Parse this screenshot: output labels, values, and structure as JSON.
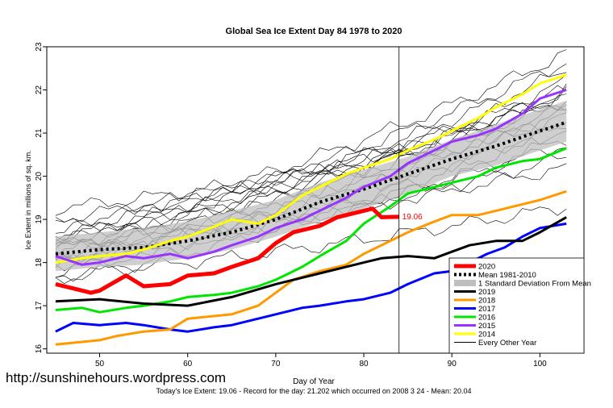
{
  "watermark": "http://sunshinehours.wordpress.com",
  "chart_data": {
    "type": "line",
    "title": "Global Sea Ice Extent Day 84 1978 to 2020",
    "xlabel": "Day of Year",
    "ylabel": "Ice Extent in millions of sq. km.",
    "footer": "Today's Ice Extent: 19.06  - Record for the day: 21.202 which occurred on 2008 3 24  - Mean: 20.04",
    "xlim": [
      44,
      105
    ],
    "ylim": [
      15.9,
      23.0
    ],
    "xticks": [
      50,
      60,
      70,
      80,
      90,
      100
    ],
    "yticks": [
      16,
      17,
      18,
      19,
      20,
      21,
      22,
      23
    ],
    "current_day": 84,
    "current_value_label": "19.06",
    "legend": [
      {
        "label": "2020",
        "color": "#ff0000",
        "style": "line",
        "width": 5
      },
      {
        "label": "Mean 1981-2010",
        "color": "#000000",
        "style": "dotted",
        "width": 4
      },
      {
        "label": "1 Standard Deviation From Mean",
        "color": "#bfbfbf",
        "style": "band",
        "width": 8
      },
      {
        "label": "2019",
        "color": "#000000",
        "style": "line",
        "width": 3
      },
      {
        "label": "2018",
        "color": "#ff9900",
        "style": "line",
        "width": 3
      },
      {
        "label": "2017",
        "color": "#0000ff",
        "style": "line",
        "width": 3
      },
      {
        "label": "2016",
        "color": "#00e600",
        "style": "line",
        "width": 3
      },
      {
        "label": "2015",
        "color": "#9933ff",
        "style": "line",
        "width": 3
      },
      {
        "label": "2014",
        "color": "#ffff00",
        "style": "line",
        "width": 3
      },
      {
        "label": "Every Other Year",
        "color": "#000000",
        "style": "line",
        "width": 1
      }
    ],
    "mean_series": {
      "x": [
        45,
        50,
        55,
        60,
        65,
        70,
        75,
        80,
        85,
        90,
        95,
        100,
        103
      ],
      "values": [
        18.2,
        18.3,
        18.35,
        18.5,
        18.7,
        19.0,
        19.4,
        19.7,
        20.05,
        20.4,
        20.7,
        21.05,
        21.25
      ]
    },
    "std_band": {
      "x": [
        45,
        50,
        55,
        60,
        65,
        70,
        75,
        80,
        85,
        90,
        95,
        100,
        103
      ],
      "upper": [
        18.6,
        18.7,
        18.8,
        18.95,
        19.2,
        19.45,
        19.85,
        20.15,
        20.45,
        20.85,
        21.2,
        21.55,
        21.75
      ],
      "lower": [
        17.8,
        17.9,
        17.95,
        18.1,
        18.3,
        18.6,
        18.95,
        19.25,
        19.6,
        20.0,
        20.25,
        20.6,
        20.8
      ]
    },
    "series": [
      {
        "name": "2020",
        "color": "#ff0000",
        "width": 5,
        "x": [
          45,
          47,
          49,
          50,
          53,
          55,
          58,
          60,
          63,
          65,
          68,
          70,
          72,
          75,
          77,
          80,
          81,
          82,
          84
        ],
        "values": [
          17.5,
          17.4,
          17.3,
          17.35,
          17.7,
          17.45,
          17.5,
          17.7,
          17.75,
          17.9,
          18.1,
          18.45,
          18.7,
          18.85,
          19.05,
          19.2,
          19.25,
          19.05,
          19.06
        ]
      },
      {
        "name": "2019",
        "color": "#000000",
        "width": 3,
        "x": [
          45,
          50,
          55,
          60,
          65,
          70,
          75,
          80,
          82,
          85,
          88,
          90,
          92,
          95,
          98,
          100,
          103
        ],
        "values": [
          17.1,
          17.15,
          17.05,
          17.0,
          17.2,
          17.5,
          17.75,
          18.0,
          18.1,
          18.15,
          18.1,
          18.25,
          18.4,
          18.5,
          18.5,
          18.7,
          19.05
        ]
      },
      {
        "name": "2018",
        "color": "#ff9900",
        "width": 3,
        "x": [
          45,
          50,
          52,
          55,
          58,
          60,
          65,
          68,
          70,
          72,
          75,
          78,
          80,
          83,
          85,
          88,
          90,
          93,
          95,
          98,
          100,
          103
        ],
        "values": [
          16.1,
          16.2,
          16.3,
          16.4,
          16.45,
          16.7,
          16.8,
          17.0,
          17.3,
          17.6,
          17.8,
          17.95,
          18.2,
          18.5,
          18.7,
          18.95,
          19.1,
          19.1,
          19.2,
          19.35,
          19.45,
          19.65
        ]
      },
      {
        "name": "2017",
        "color": "#0000ff",
        "width": 3,
        "x": [
          45,
          47,
          50,
          53,
          55,
          58,
          60,
          63,
          65,
          68,
          70,
          73,
          75,
          78,
          80,
          83,
          85,
          88,
          90,
          92,
          94,
          96,
          98,
          100,
          103
        ],
        "values": [
          16.4,
          16.6,
          16.55,
          16.6,
          16.55,
          16.45,
          16.4,
          16.5,
          16.55,
          16.7,
          16.8,
          16.95,
          17.0,
          17.1,
          17.15,
          17.3,
          17.5,
          17.75,
          17.8,
          18.0,
          18.2,
          18.35,
          18.6,
          18.8,
          18.9
        ]
      },
      {
        "name": "2016",
        "color": "#00e600",
        "width": 3,
        "x": [
          45,
          48,
          50,
          53,
          55,
          58,
          60,
          63,
          65,
          68,
          70,
          73,
          75,
          78,
          80,
          83,
          85,
          88,
          90,
          93,
          95,
          98,
          100,
          103
        ],
        "values": [
          16.9,
          16.95,
          16.85,
          16.95,
          17.0,
          17.1,
          17.2,
          17.25,
          17.3,
          17.45,
          17.6,
          17.9,
          18.15,
          18.5,
          18.9,
          19.3,
          19.6,
          19.75,
          19.85,
          20.0,
          20.2,
          20.35,
          20.4,
          20.65
        ]
      },
      {
        "name": "2015",
        "color": "#9933ff",
        "width": 3,
        "x": [
          45,
          48,
          50,
          53,
          55,
          58,
          60,
          63,
          65,
          68,
          70,
          73,
          75,
          78,
          80,
          83,
          85,
          88,
          90,
          93,
          95,
          98,
          100,
          103
        ],
        "values": [
          18.15,
          17.95,
          18.0,
          18.15,
          18.1,
          18.2,
          18.1,
          18.25,
          18.4,
          18.6,
          18.8,
          19.0,
          19.2,
          19.5,
          19.75,
          20.0,
          20.3,
          20.6,
          20.8,
          20.95,
          21.1,
          21.45,
          21.8,
          22.0
        ]
      },
      {
        "name": "2014",
        "color": "#ffff00",
        "width": 3,
        "x": [
          45,
          48,
          50,
          53,
          55,
          58,
          60,
          62,
          65,
          68,
          70,
          73,
          75,
          78,
          80,
          83,
          85,
          88,
          90,
          93,
          95,
          98,
          100,
          103
        ],
        "values": [
          18.0,
          18.1,
          18.15,
          18.2,
          18.3,
          18.5,
          18.6,
          18.75,
          19.0,
          18.9,
          19.1,
          19.55,
          19.75,
          20.05,
          20.2,
          20.4,
          20.6,
          20.85,
          21.05,
          21.35,
          21.6,
          21.9,
          22.15,
          22.35
        ]
      }
    ],
    "every_other_year": [
      {
        "start": 17.6,
        "end": 20.9
      },
      {
        "start": 17.8,
        "end": 21.1
      },
      {
        "start": 17.95,
        "end": 21.4
      },
      {
        "start": 18.05,
        "end": 21.6
      },
      {
        "start": 18.15,
        "end": 21.8
      },
      {
        "start": 18.25,
        "end": 22.0
      },
      {
        "start": 18.35,
        "end": 22.2
      },
      {
        "start": 18.45,
        "end": 22.45
      },
      {
        "start": 18.55,
        "end": 22.65
      },
      {
        "start": 18.7,
        "end": 22.85
      },
      {
        "start": 18.85,
        "end": 22.0
      },
      {
        "start": 19.0,
        "end": 21.7
      },
      {
        "start": 19.25,
        "end": 21.3
      },
      {
        "start": 18.4,
        "end": 20.2
      },
      {
        "start": 18.0,
        "end": 20.45
      },
      {
        "start": 17.7,
        "end": 19.3
      },
      {
        "start": 18.6,
        "end": 21.95
      },
      {
        "start": 18.3,
        "end": 21.5
      },
      {
        "start": 18.1,
        "end": 21.15
      },
      {
        "start": 17.95,
        "end": 20.75
      },
      {
        "start": 18.5,
        "end": 21.85
      }
    ]
  }
}
